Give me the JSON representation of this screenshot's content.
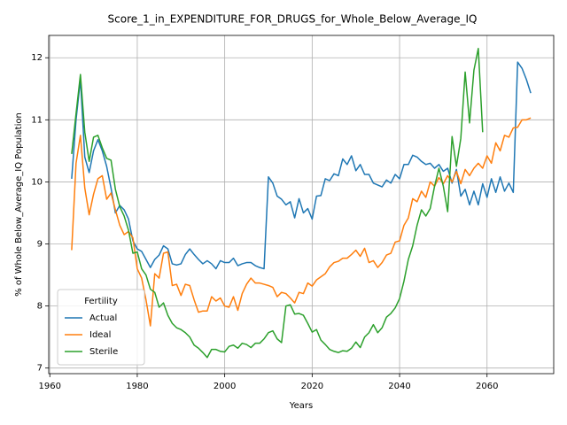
{
  "chart_data": {
    "type": "line",
    "title": "Score_1_in_EXPENDITURE_FOR_DRUGS_for_Whole_Below_Average_IQ",
    "xlabel": "Years",
    "ylabel": "% of Whole Below_Average_IQ Population",
    "legend_title": "Fertility",
    "legend": "lower left",
    "grid": true,
    "xlim": [
      1959.75,
      2075.25
    ],
    "xticks": [
      1960,
      1980,
      2000,
      2020,
      2040,
      2060
    ],
    "ylim": [
      6.91,
      12.36
    ],
    "yticks": [
      7,
      8,
      9,
      10,
      11,
      12
    ],
    "x": [
      1965,
      1966,
      1967,
      1968,
      1969,
      1970,
      1971,
      1972,
      1973,
      1974,
      1975,
      1976,
      1977,
      1978,
      1979,
      1980,
      1981,
      1982,
      1983,
      1984,
      1985,
      1986,
      1987,
      1988,
      1989,
      1990,
      1991,
      1992,
      1993,
      1994,
      1995,
      1996,
      1997,
      1998,
      1999,
      2000,
      2001,
      2002,
      2003,
      2004,
      2005,
      2006,
      2007,
      2008,
      2009,
      2010,
      2011,
      2012,
      2013,
      2014,
      2015,
      2016,
      2017,
      2018,
      2019,
      2020,
      2021,
      2022,
      2023,
      2024,
      2025,
      2026,
      2027,
      2028,
      2029,
      2030,
      2031,
      2032,
      2033,
      2034,
      2035,
      2036,
      2037,
      2038,
      2039,
      2040,
      2041,
      2042,
      2043,
      2044,
      2045,
      2046,
      2047,
      2048,
      2049,
      2050,
      2051,
      2052,
      2053,
      2054,
      2055,
      2056,
      2057,
      2058,
      2059,
      2060,
      2061,
      2062,
      2063,
      2064,
      2065,
      2066,
      2067,
      2068,
      2069,
      2070
    ],
    "series": [
      {
        "name": "Actual",
        "color": "#1f77b4",
        "values": [
          10.05,
          11.0,
          11.65,
          10.4,
          10.15,
          10.5,
          10.68,
          10.5,
          10.25,
          9.9,
          9.5,
          9.62,
          9.55,
          9.4,
          9.05,
          8.92,
          8.88,
          8.75,
          8.62,
          8.75,
          8.82,
          8.97,
          8.92,
          8.68,
          8.66,
          8.68,
          8.83,
          8.92,
          8.83,
          8.75,
          8.68,
          8.73,
          8.68,
          8.6,
          8.73,
          8.7,
          8.7,
          8.77,
          8.65,
          8.68,
          8.7,
          8.7,
          8.65,
          8.62,
          8.6,
          10.08,
          9.98,
          9.77,
          9.72,
          9.63,
          9.68,
          9.42,
          9.73,
          9.5,
          9.57,
          9.4,
          9.77,
          9.78,
          10.05,
          10.02,
          10.13,
          10.1,
          10.37,
          10.28,
          10.42,
          10.18,
          10.28,
          10.12,
          10.12,
          9.98,
          9.95,
          9.92,
          10.03,
          9.98,
          10.12,
          10.05,
          10.28,
          10.28,
          10.43,
          10.4,
          10.33,
          10.28,
          10.3,
          10.22,
          10.28,
          10.17,
          10.22,
          9.98,
          10.2,
          9.77,
          9.88,
          9.63,
          9.85,
          9.63,
          9.97,
          9.75,
          10.05,
          9.83,
          10.08,
          9.85,
          9.98,
          9.83,
          11.93,
          11.83,
          11.65,
          11.43
        ]
      },
      {
        "name": "Ideal",
        "color": "#ff7f0e",
        "values": [
          8.9,
          10.3,
          10.75,
          9.9,
          9.47,
          9.8,
          10.05,
          10.1,
          9.72,
          9.82,
          9.55,
          9.3,
          9.15,
          9.2,
          9.1,
          8.6,
          8.45,
          8.1,
          7.68,
          8.52,
          8.45,
          8.85,
          8.87,
          8.33,
          8.35,
          8.17,
          8.35,
          8.33,
          8.1,
          7.9,
          7.92,
          7.92,
          8.15,
          8.08,
          8.13,
          8.0,
          7.98,
          8.15,
          7.93,
          8.2,
          8.35,
          8.45,
          8.37,
          8.37,
          8.35,
          8.33,
          8.3,
          8.15,
          8.22,
          8.2,
          8.13,
          8.05,
          8.22,
          8.2,
          8.37,
          8.32,
          8.42,
          8.47,
          8.52,
          8.63,
          8.7,
          8.72,
          8.77,
          8.77,
          8.83,
          8.9,
          8.8,
          8.93,
          8.7,
          8.73,
          8.62,
          8.7,
          8.82,
          8.85,
          9.03,
          9.05,
          9.3,
          9.42,
          9.73,
          9.68,
          9.85,
          9.75,
          10.0,
          9.93,
          10.07,
          9.97,
          10.1,
          10.0,
          10.17,
          9.97,
          10.2,
          10.1,
          10.22,
          10.3,
          10.22,
          10.42,
          10.3,
          10.63,
          10.5,
          10.75,
          10.72,
          10.87,
          10.88,
          11.0,
          11.0,
          11.03
        ]
      },
      {
        "name": "Sterile",
        "color": "#2ca02c",
        "values": [
          10.45,
          11.1,
          11.73,
          10.8,
          10.33,
          10.72,
          10.75,
          10.55,
          10.38,
          10.35,
          9.88,
          9.6,
          9.45,
          9.22,
          8.85,
          8.87,
          8.6,
          8.5,
          8.27,
          8.22,
          7.98,
          8.05,
          7.85,
          7.72,
          7.65,
          7.62,
          7.57,
          7.5,
          7.37,
          7.32,
          7.25,
          7.17,
          7.3,
          7.3,
          7.27,
          7.26,
          7.35,
          7.37,
          7.32,
          7.4,
          7.38,
          7.33,
          7.4,
          7.4,
          7.47,
          7.57,
          7.6,
          7.47,
          7.41,
          8.0,
          8.02,
          7.87,
          7.88,
          7.85,
          7.72,
          7.58,
          7.62,
          7.45,
          7.38,
          7.3,
          7.27,
          7.25,
          7.28,
          7.27,
          7.32,
          7.42,
          7.33,
          7.5,
          7.57,
          7.7,
          7.57,
          7.65,
          7.82,
          7.88,
          7.97,
          8.12,
          8.4,
          8.75,
          8.97,
          9.3,
          9.55,
          9.45,
          9.57,
          9.93,
          10.22,
          9.93,
          9.52,
          10.73,
          10.25,
          10.7,
          11.77,
          10.95,
          11.8,
          12.15,
          10.8,
          null,
          null,
          null,
          null,
          null,
          null,
          null,
          null,
          null,
          null,
          null
        ]
      }
    ]
  }
}
